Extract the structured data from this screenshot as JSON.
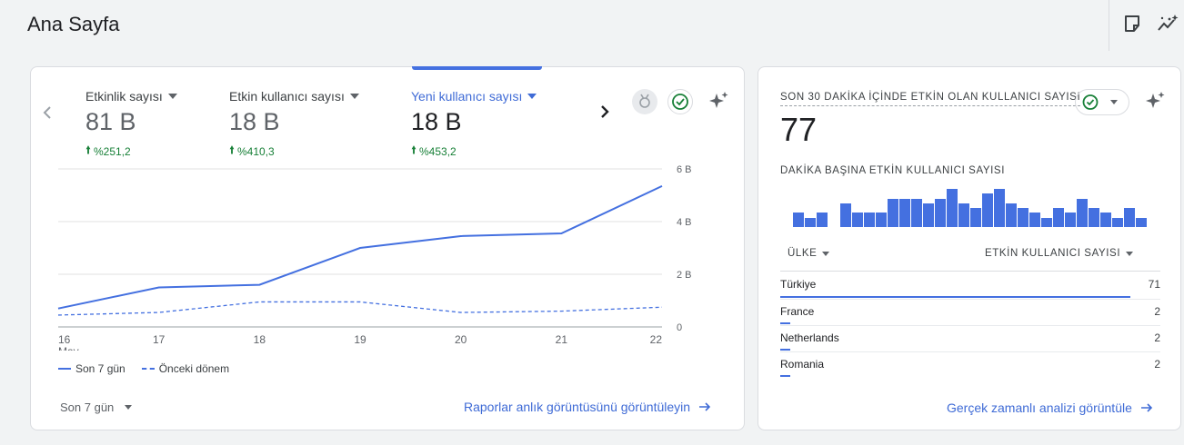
{
  "header": {
    "title": "Ana Sayfa",
    "icons": [
      "insights-note-icon",
      "anomaly-chart-icon"
    ]
  },
  "main_card": {
    "metrics": [
      {
        "name": "Etkinlik sayısı",
        "value": "81 B",
        "change": "%251,2",
        "active": false
      },
      {
        "name": "Etkin kullanıcı sayısı",
        "value": "18 B",
        "change": "%410,3",
        "active": false
      },
      {
        "name": "Yeni kullanıcı sayısı",
        "value": "18 B",
        "change": "%453,2",
        "active": true
      }
    ],
    "legend": {
      "current": "Son 7 gün",
      "previous": "Önceki dönem"
    },
    "period_label": "Son 7 gün",
    "snapshot_link": "Raporlar anlık görüntüsünü görüntüleyin",
    "accent_color": "#4470e0",
    "up_color": "#188038"
  },
  "chart_data": {
    "type": "line",
    "x": [
      "16",
      "17",
      "18",
      "19",
      "20",
      "21",
      "22"
    ],
    "x_sublabel": "May",
    "series": [
      {
        "name": "Son 7 gün",
        "values": [
          700,
          1500,
          1600,
          3000,
          3450,
          3550,
          5350
        ]
      },
      {
        "name": "Önceki dönem",
        "values": [
          450,
          550,
          950,
          950,
          550,
          600,
          750
        ]
      }
    ],
    "y_ticks": [
      "6 B",
      "4 B",
      "2 B",
      "0"
    ],
    "ylim": [
      0,
      6000
    ],
    "grid": true,
    "legend_position": "bottom-left"
  },
  "realtime": {
    "title": "SON 30 DAKİKA İÇİNDE ETKİN OLAN KULLANICI SAYISI",
    "value": "77",
    "subtitle": "DAKİKA BAŞINA ETKİN KULLANICI SAYISI",
    "per_minute": [
      3,
      2,
      3,
      0,
      5,
      3,
      3,
      3,
      6,
      6,
      6,
      5,
      6,
      8,
      5,
      4,
      7,
      8,
      5,
      4,
      3,
      2,
      4,
      3,
      6,
      4,
      3,
      2,
      4,
      2
    ],
    "col_country": "ÜLKE",
    "col_users": "ETKİN KULLANICI SAYISI",
    "rows": [
      {
        "country": "Türkiye",
        "count": "71",
        "share": 0.922
      },
      {
        "country": "France",
        "count": "2",
        "share": 0.026
      },
      {
        "country": "Netherlands",
        "count": "2",
        "share": 0.026
      },
      {
        "country": "Romania",
        "count": "2",
        "share": 0.026
      }
    ],
    "link": "Gerçek zamanlı analizi görüntüle"
  }
}
